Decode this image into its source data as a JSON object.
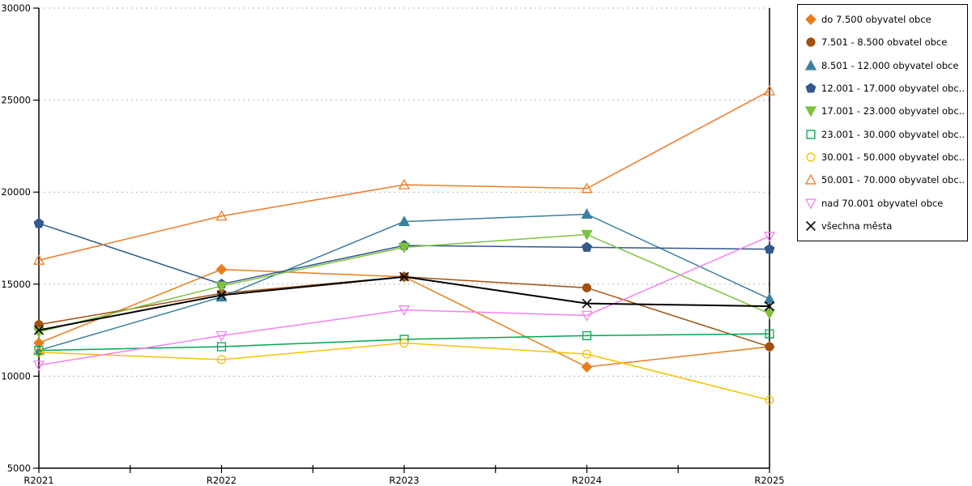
{
  "figure": {
    "background": "#ffffff",
    "grid_color": "#b3b3b3",
    "axis_color": "#000000"
  },
  "chart_data": {
    "type": "line",
    "title": "",
    "xlabel": "",
    "ylabel": "",
    "x": [
      "R2021",
      "R2022",
      "R2023",
      "R2024",
      "R2025"
    ],
    "ylim": [
      5000,
      30000
    ],
    "y_tick_step": 5000,
    "y_tick_labels": [
      "30000",
      "25000",
      "20000",
      "15000",
      "10000",
      "5000"
    ],
    "grid": "horizontal-dashed",
    "legend_position": "right",
    "series": [
      {
        "name": "do 7.500 obyvatel obce",
        "color": "#e87d1e",
        "marker": "diamond",
        "filled": true,
        "line_width": 1.5,
        "values": [
          11800,
          15800,
          15400,
          10500,
          11600
        ]
      },
      {
        "name": "7.501 - 8.500 obvatel obce",
        "color": "#a0500f",
        "marker": "circle",
        "filled": true,
        "line_width": 1.5,
        "values": [
          12800,
          14500,
          15400,
          14800,
          11600
        ]
      },
      {
        "name": "8.501 - 12.000 obyvatel obce",
        "color": "#3b7f9e",
        "marker": "triangle-up",
        "filled": true,
        "line_width": 1.5,
        "values": [
          11400,
          14300,
          18400,
          18800,
          14200
        ]
      },
      {
        "name": "12.001 - 17.000 obyvatel obc...",
        "color": "#31598c",
        "marker": "pentagon",
        "filled": true,
        "line_width": 1.5,
        "values": [
          18300,
          15000,
          17100,
          17000,
          16900
        ]
      },
      {
        "name": "17.001 - 23.000 obyvatel obc...",
        "color": "#7ec13d",
        "marker": "triangle-down",
        "filled": true,
        "line_width": 1.5,
        "values": [
          12400,
          14900,
          17000,
          17700,
          13400
        ]
      },
      {
        "name": "23.001 - 30.000 obyvatel obc...",
        "color": "#00a652",
        "marker": "square",
        "filled": false,
        "line_width": 1.5,
        "values": [
          11400,
          11600,
          12000,
          12200,
          12300
        ]
      },
      {
        "name": "30.001 - 50.000 obyvatel obc...",
        "color": "#f2c200",
        "marker": "circle",
        "filled": false,
        "line_width": 1.5,
        "values": [
          11300,
          10900,
          11800,
          11200,
          8700
        ]
      },
      {
        "name": "50.001 - 70.000 obyvatel obc...",
        "color": "#ef7a28",
        "marker": "triangle-up",
        "filled": false,
        "line_width": 1.5,
        "values": [
          16300,
          18700,
          20400,
          20200,
          25500
        ]
      },
      {
        "name": "nad 70.001 obyvatel obce",
        "color": "#f67ff0",
        "marker": "triangle-down",
        "filled": false,
        "line_width": 1.5,
        "values": [
          10600,
          12200,
          13600,
          13300,
          17600
        ]
      },
      {
        "name": "všechna města",
        "color": "#000000",
        "marker": "x",
        "filled": false,
        "line_width": 2.0,
        "values": [
          12500,
          14400,
          15400,
          13950,
          13800
        ]
      }
    ]
  }
}
